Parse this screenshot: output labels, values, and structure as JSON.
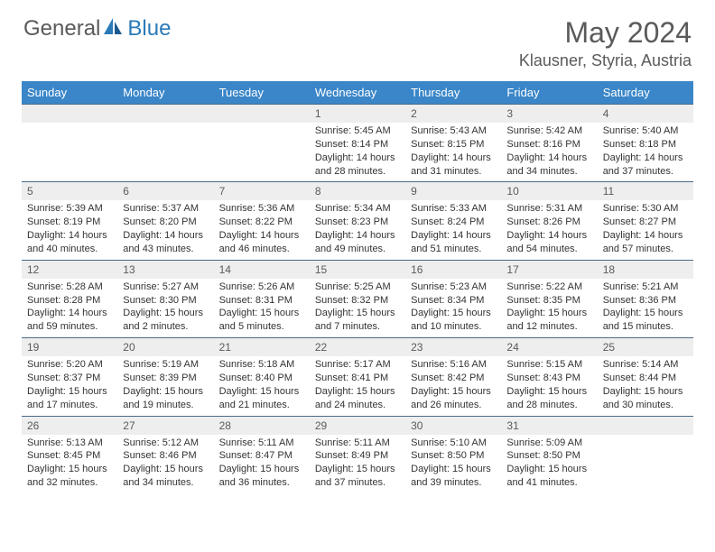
{
  "brand": {
    "general": "General",
    "blue": "Blue"
  },
  "title": "May 2024",
  "location": "Klausner, Styria, Austria",
  "colors": {
    "header_bg": "#3a86c8",
    "header_text": "#ffffff",
    "daynum_bg": "#eeeeee",
    "body_text": "#333333",
    "title_text": "#5a5a5a",
    "cell_border": "#4a6a8a"
  },
  "day_headers": [
    "Sunday",
    "Monday",
    "Tuesday",
    "Wednesday",
    "Thursday",
    "Friday",
    "Saturday"
  ],
  "weeks": [
    [
      {
        "n": "",
        "sr": "",
        "ss": "",
        "dl": ""
      },
      {
        "n": "",
        "sr": "",
        "ss": "",
        "dl": ""
      },
      {
        "n": "",
        "sr": "",
        "ss": "",
        "dl": ""
      },
      {
        "n": "1",
        "sr": "Sunrise: 5:45 AM",
        "ss": "Sunset: 8:14 PM",
        "dl": "Daylight: 14 hours and 28 minutes."
      },
      {
        "n": "2",
        "sr": "Sunrise: 5:43 AM",
        "ss": "Sunset: 8:15 PM",
        "dl": "Daylight: 14 hours and 31 minutes."
      },
      {
        "n": "3",
        "sr": "Sunrise: 5:42 AM",
        "ss": "Sunset: 8:16 PM",
        "dl": "Daylight: 14 hours and 34 minutes."
      },
      {
        "n": "4",
        "sr": "Sunrise: 5:40 AM",
        "ss": "Sunset: 8:18 PM",
        "dl": "Daylight: 14 hours and 37 minutes."
      }
    ],
    [
      {
        "n": "5",
        "sr": "Sunrise: 5:39 AM",
        "ss": "Sunset: 8:19 PM",
        "dl": "Daylight: 14 hours and 40 minutes."
      },
      {
        "n": "6",
        "sr": "Sunrise: 5:37 AM",
        "ss": "Sunset: 8:20 PM",
        "dl": "Daylight: 14 hours and 43 minutes."
      },
      {
        "n": "7",
        "sr": "Sunrise: 5:36 AM",
        "ss": "Sunset: 8:22 PM",
        "dl": "Daylight: 14 hours and 46 minutes."
      },
      {
        "n": "8",
        "sr": "Sunrise: 5:34 AM",
        "ss": "Sunset: 8:23 PM",
        "dl": "Daylight: 14 hours and 49 minutes."
      },
      {
        "n": "9",
        "sr": "Sunrise: 5:33 AM",
        "ss": "Sunset: 8:24 PM",
        "dl": "Daylight: 14 hours and 51 minutes."
      },
      {
        "n": "10",
        "sr": "Sunrise: 5:31 AM",
        "ss": "Sunset: 8:26 PM",
        "dl": "Daylight: 14 hours and 54 minutes."
      },
      {
        "n": "11",
        "sr": "Sunrise: 5:30 AM",
        "ss": "Sunset: 8:27 PM",
        "dl": "Daylight: 14 hours and 57 minutes."
      }
    ],
    [
      {
        "n": "12",
        "sr": "Sunrise: 5:28 AM",
        "ss": "Sunset: 8:28 PM",
        "dl": "Daylight: 14 hours and 59 minutes."
      },
      {
        "n": "13",
        "sr": "Sunrise: 5:27 AM",
        "ss": "Sunset: 8:30 PM",
        "dl": "Daylight: 15 hours and 2 minutes."
      },
      {
        "n": "14",
        "sr": "Sunrise: 5:26 AM",
        "ss": "Sunset: 8:31 PM",
        "dl": "Daylight: 15 hours and 5 minutes."
      },
      {
        "n": "15",
        "sr": "Sunrise: 5:25 AM",
        "ss": "Sunset: 8:32 PM",
        "dl": "Daylight: 15 hours and 7 minutes."
      },
      {
        "n": "16",
        "sr": "Sunrise: 5:23 AM",
        "ss": "Sunset: 8:34 PM",
        "dl": "Daylight: 15 hours and 10 minutes."
      },
      {
        "n": "17",
        "sr": "Sunrise: 5:22 AM",
        "ss": "Sunset: 8:35 PM",
        "dl": "Daylight: 15 hours and 12 minutes."
      },
      {
        "n": "18",
        "sr": "Sunrise: 5:21 AM",
        "ss": "Sunset: 8:36 PM",
        "dl": "Daylight: 15 hours and 15 minutes."
      }
    ],
    [
      {
        "n": "19",
        "sr": "Sunrise: 5:20 AM",
        "ss": "Sunset: 8:37 PM",
        "dl": "Daylight: 15 hours and 17 minutes."
      },
      {
        "n": "20",
        "sr": "Sunrise: 5:19 AM",
        "ss": "Sunset: 8:39 PM",
        "dl": "Daylight: 15 hours and 19 minutes."
      },
      {
        "n": "21",
        "sr": "Sunrise: 5:18 AM",
        "ss": "Sunset: 8:40 PM",
        "dl": "Daylight: 15 hours and 21 minutes."
      },
      {
        "n": "22",
        "sr": "Sunrise: 5:17 AM",
        "ss": "Sunset: 8:41 PM",
        "dl": "Daylight: 15 hours and 24 minutes."
      },
      {
        "n": "23",
        "sr": "Sunrise: 5:16 AM",
        "ss": "Sunset: 8:42 PM",
        "dl": "Daylight: 15 hours and 26 minutes."
      },
      {
        "n": "24",
        "sr": "Sunrise: 5:15 AM",
        "ss": "Sunset: 8:43 PM",
        "dl": "Daylight: 15 hours and 28 minutes."
      },
      {
        "n": "25",
        "sr": "Sunrise: 5:14 AM",
        "ss": "Sunset: 8:44 PM",
        "dl": "Daylight: 15 hours and 30 minutes."
      }
    ],
    [
      {
        "n": "26",
        "sr": "Sunrise: 5:13 AM",
        "ss": "Sunset: 8:45 PM",
        "dl": "Daylight: 15 hours and 32 minutes."
      },
      {
        "n": "27",
        "sr": "Sunrise: 5:12 AM",
        "ss": "Sunset: 8:46 PM",
        "dl": "Daylight: 15 hours and 34 minutes."
      },
      {
        "n": "28",
        "sr": "Sunrise: 5:11 AM",
        "ss": "Sunset: 8:47 PM",
        "dl": "Daylight: 15 hours and 36 minutes."
      },
      {
        "n": "29",
        "sr": "Sunrise: 5:11 AM",
        "ss": "Sunset: 8:49 PM",
        "dl": "Daylight: 15 hours and 37 minutes."
      },
      {
        "n": "30",
        "sr": "Sunrise: 5:10 AM",
        "ss": "Sunset: 8:50 PM",
        "dl": "Daylight: 15 hours and 39 minutes."
      },
      {
        "n": "31",
        "sr": "Sunrise: 5:09 AM",
        "ss": "Sunset: 8:50 PM",
        "dl": "Daylight: 15 hours and 41 minutes."
      },
      {
        "n": "",
        "sr": "",
        "ss": "",
        "dl": ""
      }
    ]
  ]
}
